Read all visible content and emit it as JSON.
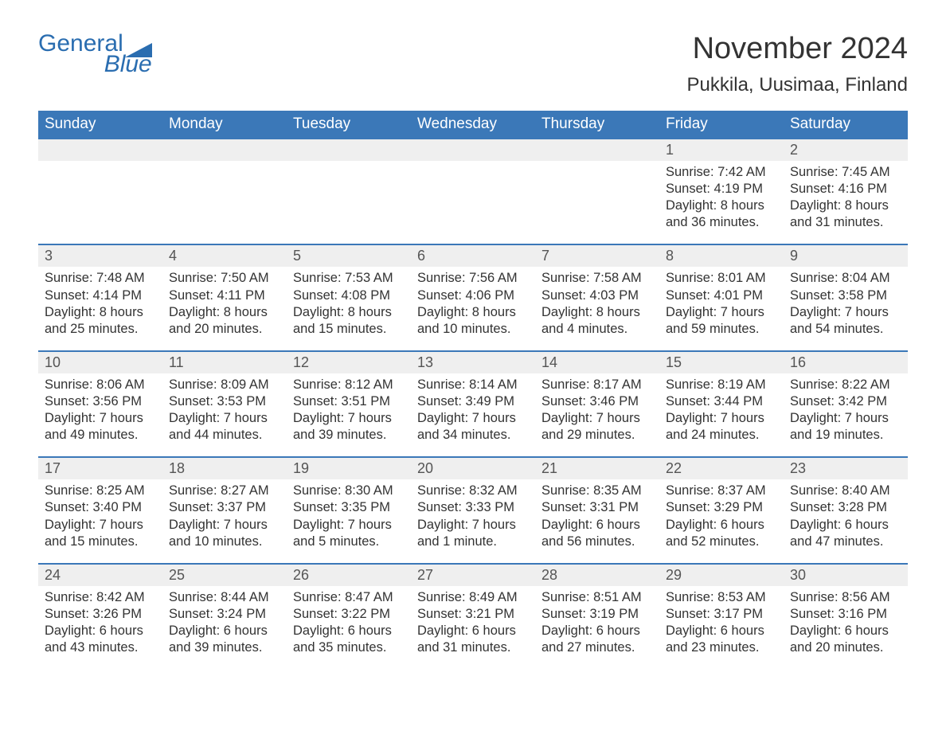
{
  "logo": {
    "text1": "General",
    "text2": "Blue",
    "color": "#2a6db0"
  },
  "title": "November 2024",
  "location": "Pukkila, Uusimaa, Finland",
  "styling": {
    "header_bg": "#3b78b8",
    "header_text": "#ffffff",
    "daynum_bg": "#efefef",
    "border_top": "#3b78b8",
    "body_bg": "#ffffff",
    "text_color": "#333333",
    "title_fontsize": 38,
    "location_fontsize": 24,
    "header_fontsize": 19,
    "daynum_fontsize": 18,
    "cell_fontsize": 16.5
  },
  "day_headers": [
    "Sunday",
    "Monday",
    "Tuesday",
    "Wednesday",
    "Thursday",
    "Friday",
    "Saturday"
  ],
  "weeks": [
    [
      null,
      null,
      null,
      null,
      null,
      {
        "n": "1",
        "sunrise": "7:42 AM",
        "sunset": "4:19 PM",
        "dl1": "Daylight: 8 hours",
        "dl2": "and 36 minutes."
      },
      {
        "n": "2",
        "sunrise": "7:45 AM",
        "sunset": "4:16 PM",
        "dl1": "Daylight: 8 hours",
        "dl2": "and 31 minutes."
      }
    ],
    [
      {
        "n": "3",
        "sunrise": "7:48 AM",
        "sunset": "4:14 PM",
        "dl1": "Daylight: 8 hours",
        "dl2": "and 25 minutes."
      },
      {
        "n": "4",
        "sunrise": "7:50 AM",
        "sunset": "4:11 PM",
        "dl1": "Daylight: 8 hours",
        "dl2": "and 20 minutes."
      },
      {
        "n": "5",
        "sunrise": "7:53 AM",
        "sunset": "4:08 PM",
        "dl1": "Daylight: 8 hours",
        "dl2": "and 15 minutes."
      },
      {
        "n": "6",
        "sunrise": "7:56 AM",
        "sunset": "4:06 PM",
        "dl1": "Daylight: 8 hours",
        "dl2": "and 10 minutes."
      },
      {
        "n": "7",
        "sunrise": "7:58 AM",
        "sunset": "4:03 PM",
        "dl1": "Daylight: 8 hours",
        "dl2": "and 4 minutes."
      },
      {
        "n": "8",
        "sunrise": "8:01 AM",
        "sunset": "4:01 PM",
        "dl1": "Daylight: 7 hours",
        "dl2": "and 59 minutes."
      },
      {
        "n": "9",
        "sunrise": "8:04 AM",
        "sunset": "3:58 PM",
        "dl1": "Daylight: 7 hours",
        "dl2": "and 54 minutes."
      }
    ],
    [
      {
        "n": "10",
        "sunrise": "8:06 AM",
        "sunset": "3:56 PM",
        "dl1": "Daylight: 7 hours",
        "dl2": "and 49 minutes."
      },
      {
        "n": "11",
        "sunrise": "8:09 AM",
        "sunset": "3:53 PM",
        "dl1": "Daylight: 7 hours",
        "dl2": "and 44 minutes."
      },
      {
        "n": "12",
        "sunrise": "8:12 AM",
        "sunset": "3:51 PM",
        "dl1": "Daylight: 7 hours",
        "dl2": "and 39 minutes."
      },
      {
        "n": "13",
        "sunrise": "8:14 AM",
        "sunset": "3:49 PM",
        "dl1": "Daylight: 7 hours",
        "dl2": "and 34 minutes."
      },
      {
        "n": "14",
        "sunrise": "8:17 AM",
        "sunset": "3:46 PM",
        "dl1": "Daylight: 7 hours",
        "dl2": "and 29 minutes."
      },
      {
        "n": "15",
        "sunrise": "8:19 AM",
        "sunset": "3:44 PM",
        "dl1": "Daylight: 7 hours",
        "dl2": "and 24 minutes."
      },
      {
        "n": "16",
        "sunrise": "8:22 AM",
        "sunset": "3:42 PM",
        "dl1": "Daylight: 7 hours",
        "dl2": "and 19 minutes."
      }
    ],
    [
      {
        "n": "17",
        "sunrise": "8:25 AM",
        "sunset": "3:40 PM",
        "dl1": "Daylight: 7 hours",
        "dl2": "and 15 minutes."
      },
      {
        "n": "18",
        "sunrise": "8:27 AM",
        "sunset": "3:37 PM",
        "dl1": "Daylight: 7 hours",
        "dl2": "and 10 minutes."
      },
      {
        "n": "19",
        "sunrise": "8:30 AM",
        "sunset": "3:35 PM",
        "dl1": "Daylight: 7 hours",
        "dl2": "and 5 minutes."
      },
      {
        "n": "20",
        "sunrise": "8:32 AM",
        "sunset": "3:33 PM",
        "dl1": "Daylight: 7 hours",
        "dl2": "and 1 minute."
      },
      {
        "n": "21",
        "sunrise": "8:35 AM",
        "sunset": "3:31 PM",
        "dl1": "Daylight: 6 hours",
        "dl2": "and 56 minutes."
      },
      {
        "n": "22",
        "sunrise": "8:37 AM",
        "sunset": "3:29 PM",
        "dl1": "Daylight: 6 hours",
        "dl2": "and 52 minutes."
      },
      {
        "n": "23",
        "sunrise": "8:40 AM",
        "sunset": "3:28 PM",
        "dl1": "Daylight: 6 hours",
        "dl2": "and 47 minutes."
      }
    ],
    [
      {
        "n": "24",
        "sunrise": "8:42 AM",
        "sunset": "3:26 PM",
        "dl1": "Daylight: 6 hours",
        "dl2": "and 43 minutes."
      },
      {
        "n": "25",
        "sunrise": "8:44 AM",
        "sunset": "3:24 PM",
        "dl1": "Daylight: 6 hours",
        "dl2": "and 39 minutes."
      },
      {
        "n": "26",
        "sunrise": "8:47 AM",
        "sunset": "3:22 PM",
        "dl1": "Daylight: 6 hours",
        "dl2": "and 35 minutes."
      },
      {
        "n": "27",
        "sunrise": "8:49 AM",
        "sunset": "3:21 PM",
        "dl1": "Daylight: 6 hours",
        "dl2": "and 31 minutes."
      },
      {
        "n": "28",
        "sunrise": "8:51 AM",
        "sunset": "3:19 PM",
        "dl1": "Daylight: 6 hours",
        "dl2": "and 27 minutes."
      },
      {
        "n": "29",
        "sunrise": "8:53 AM",
        "sunset": "3:17 PM",
        "dl1": "Daylight: 6 hours",
        "dl2": "and 23 minutes."
      },
      {
        "n": "30",
        "sunrise": "8:56 AM",
        "sunset": "3:16 PM",
        "dl1": "Daylight: 6 hours",
        "dl2": "and 20 minutes."
      }
    ]
  ],
  "labels": {
    "sunrise_prefix": "Sunrise: ",
    "sunset_prefix": "Sunset: "
  }
}
